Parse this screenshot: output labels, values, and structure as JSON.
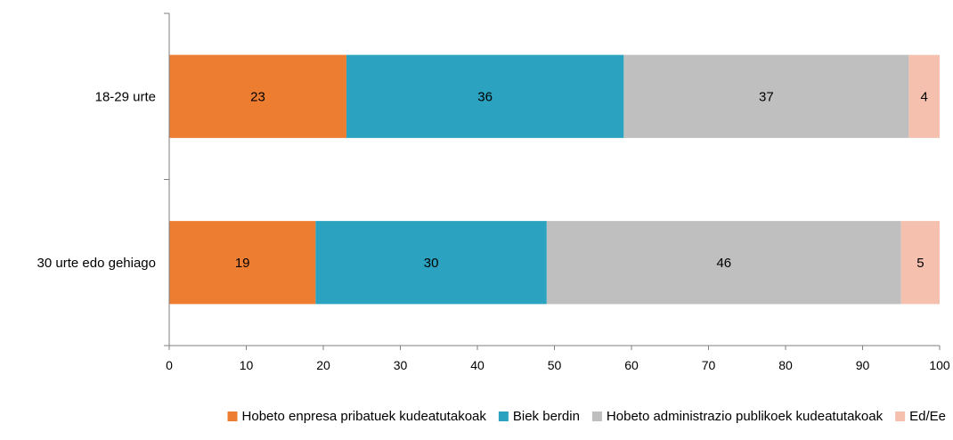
{
  "chart_data": {
    "type": "bar",
    "orientation": "horizontal",
    "stacked": true,
    "title": "",
    "xlabel": "",
    "ylabel": "",
    "categories": [
      "18-29 urte",
      "30 urte edo gehiago"
    ],
    "series": [
      {
        "name": "Hobeto enpresa pribatuek kudeatutakoak",
        "color": "#ED7D31",
        "values": [
          23,
          19
        ]
      },
      {
        "name": "Biek berdin",
        "color": "#2AA2C0",
        "values": [
          36,
          30
        ]
      },
      {
        "name": "Hobeto administrazio publikoek kudeatutakoak",
        "color": "#BFBFBF",
        "values": [
          37,
          46
        ]
      },
      {
        "name": "Ed/Ee",
        "color": "#F5C1AE",
        "values": [
          4,
          5
        ]
      }
    ],
    "xlim": [
      0,
      100
    ],
    "xticks": [
      0,
      10,
      20,
      30,
      40,
      50,
      60,
      70,
      80,
      90,
      100
    ],
    "grid": false,
    "legend_position": "bottom"
  }
}
